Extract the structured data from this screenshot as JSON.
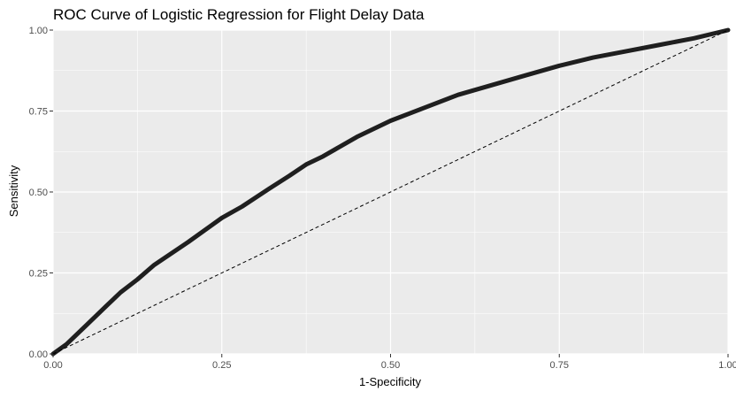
{
  "chart_data": {
    "type": "line",
    "title": "ROC Curve of Logistic Regression for Flight Delay Data",
    "xlabel": "1-Specificity",
    "ylabel": "Sensitivity",
    "xlim": [
      0,
      1
    ],
    "ylim": [
      0,
      1
    ],
    "x_ticks": [
      "0.00",
      "0.25",
      "0.50",
      "0.75",
      "1.00"
    ],
    "y_ticks": [
      "0.00",
      "0.25",
      "0.50",
      "0.75",
      "1.00"
    ],
    "grid": true,
    "legend": "none",
    "colors": {
      "panel_background": "#ebebeb",
      "grid_major": "#ffffff",
      "roc_line": "#1f1f1f",
      "reference_line": "#000000"
    },
    "series": [
      {
        "style": "solid-thick",
        "x": [
          0.0,
          0.02,
          0.05,
          0.08,
          0.1,
          0.125,
          0.15,
          0.2,
          0.25,
          0.28,
          0.32,
          0.35,
          0.375,
          0.4,
          0.45,
          0.5,
          0.55,
          0.6,
          0.65,
          0.7,
          0.75,
          0.8,
          0.85,
          0.9,
          0.95,
          1.0
        ],
        "y": [
          0.0,
          0.03,
          0.09,
          0.15,
          0.19,
          0.23,
          0.275,
          0.345,
          0.42,
          0.455,
          0.51,
          0.55,
          0.585,
          0.61,
          0.67,
          0.72,
          0.76,
          0.8,
          0.83,
          0.86,
          0.89,
          0.915,
          0.935,
          0.955,
          0.975,
          1.0
        ]
      },
      {
        "style": "dashed",
        "x": [
          0,
          1
        ],
        "y": [
          0,
          1
        ]
      }
    ]
  }
}
